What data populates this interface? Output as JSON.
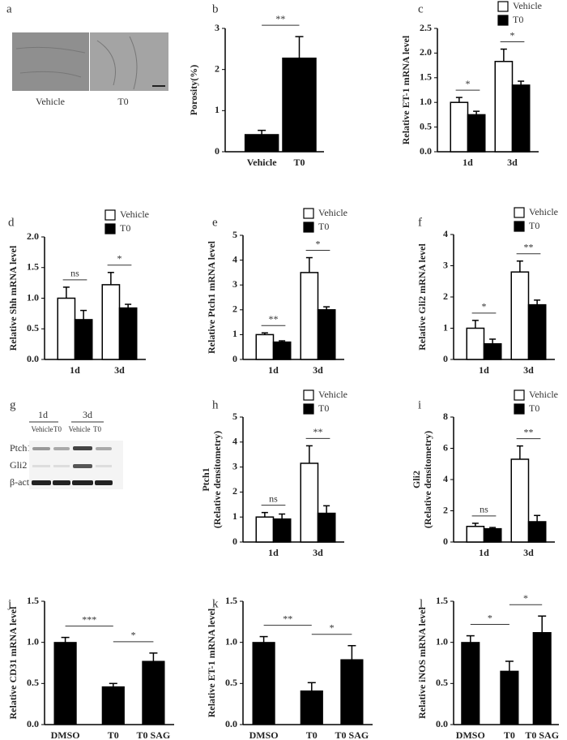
{
  "chart_data": [
    {
      "type": "bar",
      "panel": "b",
      "ylabel": "Porosity(%)",
      "categories": [
        "Vehicle",
        "T0"
      ],
      "values": [
        0.42,
        2.28
      ],
      "errors": [
        0.1,
        0.52
      ],
      "color": "#000000",
      "ylim": [
        0,
        3
      ],
      "yticks": [
        0,
        1,
        2,
        3
      ],
      "annotations": [
        "**"
      ],
      "grid": false
    },
    {
      "type": "grouped-bar",
      "panel": "c",
      "ylabel": "Relative ET-1 mRNA level",
      "categories": [
        "1d",
        "3d"
      ],
      "series": [
        {
          "name": "Vehicle",
          "color": "#ffffff",
          "values": [
            1.0,
            1.83
          ],
          "errors": [
            0.1,
            0.25
          ]
        },
        {
          "name": "T0",
          "color": "#000000",
          "values": [
            0.75,
            1.35
          ],
          "errors": [
            0.07,
            0.08
          ]
        }
      ],
      "ylim": [
        0,
        2.5
      ],
      "yticks": [
        {
          "value": 0,
          "label": "0.0"
        },
        0.5,
        {
          "value": 1,
          "label": "1.0"
        },
        1.5,
        {
          "value": 2,
          "label": "2.0"
        },
        2.5
      ],
      "annotations": [
        "*",
        "*"
      ],
      "legend": "top-right",
      "grid": false
    },
    {
      "type": "grouped-bar",
      "panel": "d",
      "ylabel": "Relative Shh mRNA level",
      "categories": [
        "1d",
        "3d"
      ],
      "series": [
        {
          "name": "Vehicle",
          "color": "#ffffff",
          "values": [
            1.0,
            1.22
          ],
          "errors": [
            0.18,
            0.2
          ]
        },
        {
          "name": "T0",
          "color": "#000000",
          "values": [
            0.65,
            0.84
          ],
          "errors": [
            0.15,
            0.06
          ]
        }
      ],
      "ylim": [
        0,
        2
      ],
      "yticks": [
        {
          "value": 0,
          "label": "0.0"
        },
        0.5,
        {
          "value": 1,
          "label": "1.0"
        },
        1.5,
        {
          "value": 2,
          "label": "2.0"
        }
      ],
      "annotations": [
        "ns",
        "*"
      ],
      "legend": "top-right",
      "grid": false
    },
    {
      "type": "grouped-bar",
      "panel": "e",
      "ylabel": "Relative Ptch1 mRNA level",
      "categories": [
        "1d",
        "3d"
      ],
      "series": [
        {
          "name": "Vehicle",
          "color": "#ffffff",
          "values": [
            1.0,
            3.5
          ],
          "errors": [
            0.07,
            0.6
          ]
        },
        {
          "name": "T0",
          "color": "#000000",
          "values": [
            0.7,
            2.0
          ],
          "errors": [
            0.05,
            0.12
          ]
        }
      ],
      "ylim": [
        0,
        5
      ],
      "yticks": [
        0,
        1,
        2,
        3,
        4,
        5
      ],
      "annotations": [
        "**",
        "*"
      ],
      "legend": "top-right",
      "grid": false
    },
    {
      "type": "grouped-bar",
      "panel": "f",
      "ylabel": "Relative Gli2 mRNA level",
      "categories": [
        "1d",
        "3d"
      ],
      "series": [
        {
          "name": "Vehicle",
          "color": "#ffffff",
          "values": [
            1.0,
            2.8
          ],
          "errors": [
            0.25,
            0.35
          ]
        },
        {
          "name": "T0",
          "color": "#000000",
          "values": [
            0.5,
            1.75
          ],
          "errors": [
            0.15,
            0.15
          ]
        }
      ],
      "ylim": [
        0,
        4
      ],
      "yticks": [
        0,
        1,
        2,
        3,
        4
      ],
      "annotations": [
        "*",
        "**"
      ],
      "legend": "top-right",
      "grid": false
    },
    {
      "type": "grouped-bar",
      "panel": "h",
      "ylabel": [
        "Ptch1",
        "(Relative densitometry)"
      ],
      "categories": [
        "1d",
        "3d"
      ],
      "series": [
        {
          "name": "Vehicle",
          "color": "#ffffff",
          "values": [
            1.0,
            3.15
          ],
          "errors": [
            0.18,
            0.7
          ]
        },
        {
          "name": "T0",
          "color": "#000000",
          "values": [
            0.92,
            1.15
          ],
          "errors": [
            0.2,
            0.3
          ]
        }
      ],
      "ylim": [
        0,
        5
      ],
      "yticks": [
        0,
        1,
        2,
        3,
        4,
        5
      ],
      "annotations": [
        "ns",
        "**"
      ],
      "legend": "top-right",
      "grid": false
    },
    {
      "type": "grouped-bar",
      "panel": "i",
      "ylabel": [
        "Gli2",
        "(Relative densitometry)"
      ],
      "categories": [
        "1d",
        "3d"
      ],
      "series": [
        {
          "name": "Vehicle",
          "color": "#ffffff",
          "values": [
            1.0,
            5.3
          ],
          "errors": [
            0.2,
            0.85
          ]
        },
        {
          "name": "T0",
          "color": "#000000",
          "values": [
            0.85,
            1.3
          ],
          "errors": [
            0.08,
            0.4
          ]
        }
      ],
      "ylim": [
        0,
        8
      ],
      "yticks": [
        0,
        2,
        4,
        6,
        8
      ],
      "annotations": [
        "ns",
        "**"
      ],
      "legend": "top-right",
      "grid": false
    },
    {
      "type": "bar",
      "panel": "j",
      "ylabel": "Relative CD31 mRNA level",
      "categories": [
        "DMSO",
        "T0",
        "T0 SAG"
      ],
      "values": [
        1.0,
        0.46,
        0.77
      ],
      "errors": [
        0.06,
        0.04,
        0.1
      ],
      "color": "#000000",
      "ylim": [
        0,
        1.5
      ],
      "yticks": [
        {
          "value": 0,
          "label": "0.0"
        },
        0.5,
        {
          "value": 1,
          "label": "1.0"
        },
        1.5
      ],
      "annotations": [
        "***",
        "*"
      ],
      "grid": false
    },
    {
      "type": "bar",
      "panel": "k",
      "ylabel": "Relative ET-1 mRNA level",
      "categories": [
        "DMSO",
        "T0",
        "T0 SAG"
      ],
      "values": [
        1.0,
        0.41,
        0.79
      ],
      "errors": [
        0.07,
        0.1,
        0.17
      ],
      "color": "#000000",
      "ylim": [
        0,
        1.5
      ],
      "yticks": [
        {
          "value": 0,
          "label": "0.0"
        },
        0.5,
        {
          "value": 1,
          "label": "1.0"
        },
        1.5
      ],
      "annotations": [
        "**",
        "*"
      ],
      "grid": false
    },
    {
      "type": "bar",
      "panel": "l",
      "ylabel": "Relative iNOS mRNA level",
      "categories": [
        "DMSO",
        "T0",
        "T0 SAG"
      ],
      "values": [
        1.0,
        0.65,
        1.12
      ],
      "errors": [
        0.08,
        0.12,
        0.2
      ],
      "color": "#000000",
      "ylim": [
        0,
        1.5
      ],
      "yticks": [
        {
          "value": 0,
          "label": "0.0"
        },
        0.5,
        {
          "value": 1,
          "label": "1.0"
        },
        1.5
      ],
      "annotations": [
        "*",
        "*"
      ],
      "grid": false
    }
  ],
  "figure_images": {
    "a": {
      "panel": "a",
      "labels": [
        "Vehicle",
        "T0"
      ]
    },
    "g": {
      "panel": "g",
      "times": [
        "1d",
        "3d"
      ],
      "lanes": [
        "Vehicle",
        "T0",
        "Vehicle",
        "T0"
      ],
      "proteins": [
        "Ptch1",
        "Gli2",
        "β-actin"
      ]
    }
  }
}
